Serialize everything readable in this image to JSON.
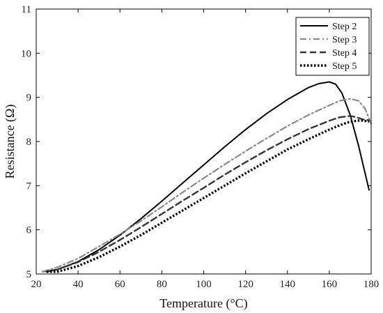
{
  "chart_data": {
    "type": "line",
    "xlabel": "Temperature (°C)",
    "ylabel": "Resistance (Ω)",
    "xlim": [
      20,
      180
    ],
    "ylim": [
      5,
      11
    ],
    "xticks": [
      20,
      40,
      60,
      80,
      100,
      120,
      140,
      160,
      180
    ],
    "yticks": [
      5,
      6,
      7,
      8,
      9,
      10,
      11
    ],
    "grid": false,
    "legend_position": "top-right",
    "series": [
      {
        "name": "Step 2",
        "color": "#000000",
        "style": "solid",
        "x": [
          23,
          30,
          40,
          50,
          60,
          70,
          80,
          90,
          100,
          110,
          120,
          130,
          140,
          150,
          155,
          160,
          163,
          166,
          170,
          174,
          177,
          179
        ],
        "y": [
          5.05,
          5.1,
          5.28,
          5.55,
          5.88,
          6.25,
          6.65,
          7.06,
          7.47,
          7.88,
          8.27,
          8.63,
          8.95,
          9.22,
          9.31,
          9.35,
          9.3,
          9.1,
          8.6,
          7.9,
          7.3,
          6.9
        ]
      },
      {
        "name": "Step 3",
        "color": "#888888",
        "style": "dashdot",
        "x": [
          23,
          30,
          40,
          50,
          60,
          70,
          80,
          90,
          100,
          110,
          120,
          130,
          140,
          150,
          160,
          165,
          170,
          174,
          177,
          180
        ],
        "y": [
          5.05,
          5.15,
          5.35,
          5.62,
          5.9,
          6.2,
          6.52,
          6.85,
          7.17,
          7.48,
          7.78,
          8.07,
          8.35,
          8.6,
          8.82,
          8.92,
          8.97,
          8.92,
          8.75,
          8.4
        ]
      },
      {
        "name": "Step 4",
        "color": "#333333",
        "style": "dash",
        "x": [
          25,
          30,
          40,
          50,
          60,
          70,
          80,
          90,
          100,
          110,
          120,
          130,
          140,
          150,
          160,
          165,
          170,
          173,
          176,
          179
        ],
        "y": [
          5.05,
          5.1,
          5.27,
          5.5,
          5.77,
          6.06,
          6.36,
          6.66,
          6.95,
          7.25,
          7.53,
          7.8,
          8.05,
          8.28,
          8.47,
          8.55,
          8.58,
          8.55,
          8.5,
          8.48
        ]
      },
      {
        "name": "Step 5",
        "color": "#000000",
        "style": "dot",
        "x": [
          25,
          30,
          40,
          50,
          60,
          70,
          80,
          90,
          100,
          110,
          120,
          130,
          140,
          150,
          160,
          165,
          170,
          175,
          179
        ],
        "y": [
          5.05,
          5.05,
          5.18,
          5.38,
          5.62,
          5.88,
          6.16,
          6.44,
          6.72,
          7.0,
          7.28,
          7.55,
          7.82,
          8.05,
          8.27,
          8.37,
          8.45,
          8.48,
          8.45
        ]
      }
    ]
  }
}
